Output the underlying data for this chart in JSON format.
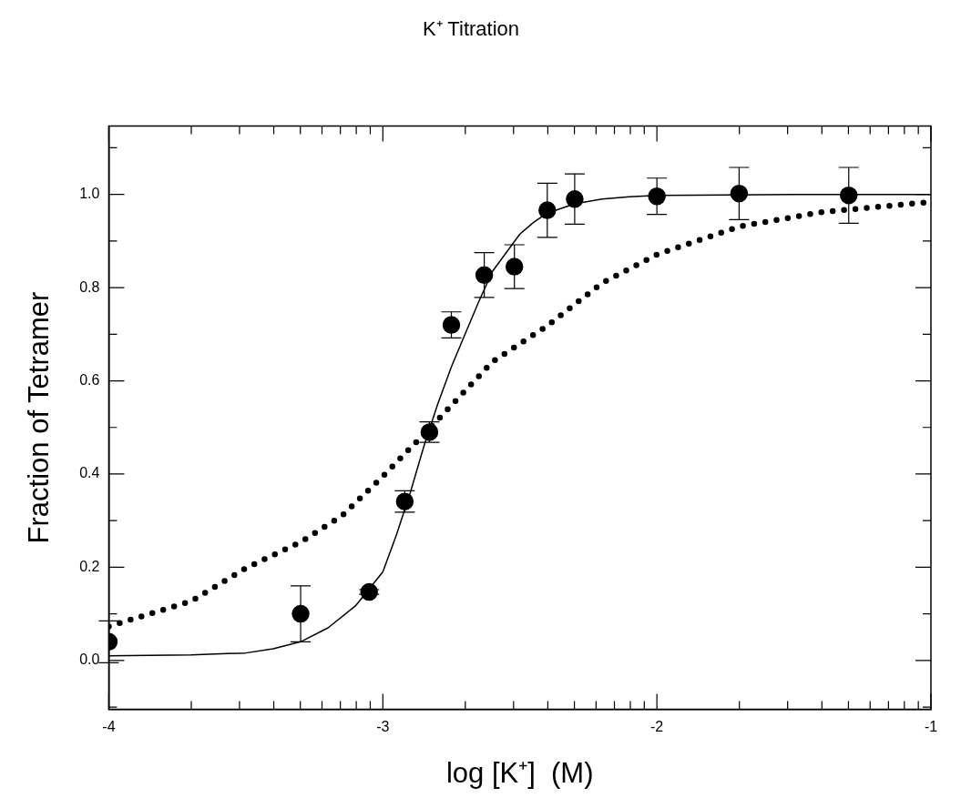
{
  "chart_data": {
    "type": "scatter",
    "title": "K⁺ Titration",
    "xlabel": "log [K⁺]  (M)",
    "ylabel": "Fraction of Tetramer",
    "xlim": [
      -4,
      -1
    ],
    "ylim": [
      -0.105,
      1.147
    ],
    "xticks": [
      -4,
      {
        "value": -3.699,
        "label": null
      },
      {
        "value": -3.523,
        "label": null
      },
      {
        "value": -3.398,
        "label": null
      },
      {
        "value": -3.301,
        "label": null
      },
      {
        "value": -3.222,
        "label": null
      },
      {
        "value": -3.155,
        "label": null
      },
      {
        "value": -3.097,
        "label": null
      },
      {
        "value": -3.046,
        "label": null
      },
      -3,
      {
        "value": -2.699,
        "label": null
      },
      {
        "value": -2.523,
        "label": null
      },
      {
        "value": -2.398,
        "label": null
      },
      {
        "value": -2.301,
        "label": null
      },
      {
        "value": -2.222,
        "label": null
      },
      {
        "value": -2.155,
        "label": null
      },
      {
        "value": -2.097,
        "label": null
      },
      {
        "value": -2.046,
        "label": null
      },
      -2,
      {
        "value": -1.699,
        "label": null
      },
      {
        "value": -1.523,
        "label": null
      },
      {
        "value": -1.398,
        "label": null
      },
      {
        "value": -1.301,
        "label": null
      },
      {
        "value": -1.222,
        "label": null
      },
      {
        "value": -1.155,
        "label": null
      },
      {
        "value": -1.097,
        "label": null
      },
      {
        "value": -1.046,
        "label": null
      },
      -1
    ],
    "yticks": [
      {
        "value": -0.1,
        "label": null
      },
      {
        "value": 0,
        "label": "0.0"
      },
      {
        "value": 0.1,
        "label": null
      },
      {
        "value": 0.2,
        "label": "0.2"
      },
      {
        "value": 0.3,
        "label": null
      },
      {
        "value": 0.4,
        "label": "0.4"
      },
      {
        "value": 0.5,
        "label": null
      },
      {
        "value": 0.6,
        "label": "0.6"
      },
      {
        "value": 0.7,
        "label": null
      },
      {
        "value": 0.8,
        "label": "0.8"
      },
      {
        "value": 0.9,
        "label": null
      },
      {
        "value": 1.0,
        "label": "1.0"
      },
      {
        "value": 1.1,
        "label": null
      }
    ],
    "grid": false,
    "legend": false,
    "series": [
      {
        "color": "#000000",
        "marker": "circle",
        "x": [
          -4,
          -3.3,
          -3.05,
          -2.92,
          -2.83,
          -2.75,
          -2.63,
          -2.52,
          -2.4,
          -2.3,
          -2.0,
          -1.7,
          -1.3
        ],
        "values": [
          0.04,
          0.1,
          0.147,
          0.341,
          0.49,
          0.72,
          0.827,
          0.845,
          0.966,
          0.99,
          0.996,
          1.002,
          0.998
        ],
        "errors": [
          0.045,
          0.06,
          0.005,
          0.023,
          0.022,
          0.028,
          0.048,
          0.047,
          0.058,
          0.054,
          0.039,
          0.056,
          0.06
        ]
      },
      {
        "type": "line",
        "color": "#000000",
        "marker": "none",
        "line_style": "solid",
        "x": [
          -4,
          -3.7,
          -3.5,
          -3.4,
          -3.3,
          -3.2,
          -3.1,
          -3.0,
          -2.95,
          -2.9,
          -2.85,
          -2.8,
          -2.75,
          -2.7,
          -2.65,
          -2.6,
          -2.5,
          -2.45,
          -2.4,
          -2.3,
          -2.2,
          -2.1,
          -2.0,
          -1.5,
          -1.0
        ],
        "values": [
          0.01,
          0.012,
          0.016,
          0.025,
          0.04,
          0.07,
          0.117,
          0.19,
          0.27,
          0.36,
          0.46,
          0.55,
          0.63,
          0.7,
          0.77,
          0.835,
          0.915,
          0.94,
          0.96,
          0.98,
          0.99,
          0.995,
          0.998,
          1.0,
          1.0
        ]
      },
      {
        "type": "line",
        "color": "#000000",
        "marker": "none",
        "line_style": "dotted",
        "x": [
          -4,
          -3.7,
          -3.5,
          -3.3,
          -3.15,
          -3.0,
          -2.8,
          -2.6,
          -2.4,
          -2.2,
          -2.0,
          -1.7,
          -1.4,
          -1.0
        ],
        "values": [
          0.073,
          0.127,
          0.198,
          0.254,
          0.31,
          0.395,
          0.516,
          0.641,
          0.718,
          0.81,
          0.871,
          0.931,
          0.962,
          0.984
        ]
      }
    ]
  }
}
